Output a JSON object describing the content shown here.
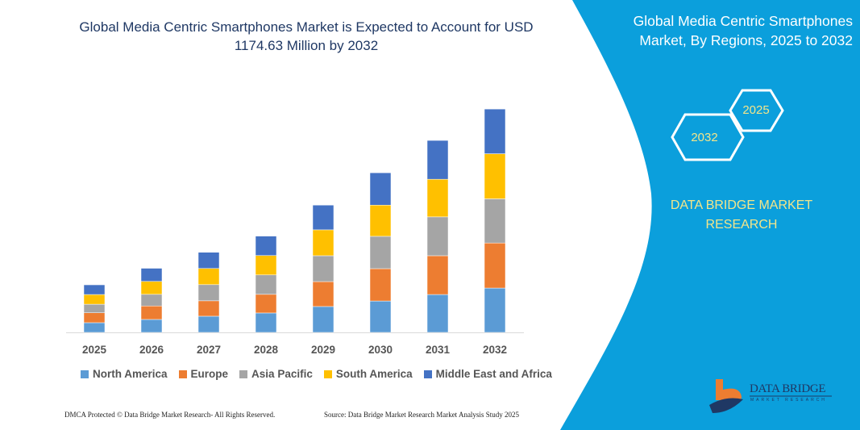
{
  "header": {
    "title": "Global Media Centric Smartphones Market is Expected to Account for USD 1174.63 Million by 2032"
  },
  "side_panel": {
    "title": "Global Media Centric Smartphones Market, By Regions, 2025 to 2032",
    "hex_labels": [
      "2025",
      "2032"
    ],
    "brand": "DATA BRIDGE MARKET RESEARCH",
    "logo_text": "DATA BRIDGE",
    "logo_sub": "MARKET RESEARCH",
    "panel_color": "#0b9fdc"
  },
  "footer": {
    "left": "DMCA Protected © Data Bridge Market Research- All Rights Reserved.",
    "right": "Source: Data Bridge Market Research Market Analysis Study 2025"
  },
  "chart_data": {
    "type": "bar",
    "stacked": true,
    "categories": [
      "2025",
      "2026",
      "2027",
      "2028",
      "2029",
      "2030",
      "2031",
      "2032"
    ],
    "series": [
      {
        "name": "North America",
        "color": "#5b9bd5",
        "values": [
          51,
          68,
          85,
          102,
          136,
          165,
          199,
          233
        ]
      },
      {
        "name": "Europe",
        "color": "#ed7d31",
        "values": [
          52,
          71,
          81,
          98,
          131,
          170,
          204,
          237
        ]
      },
      {
        "name": "Asia Pacific",
        "color": "#a5a5a5",
        "values": [
          45,
          61,
          85,
          102,
          136,
          170,
          204,
          232
        ]
      },
      {
        "name": "South America",
        "color": "#ffc000",
        "values": [
          51,
          68,
          85,
          102,
          136,
          164,
          198,
          237
        ]
      },
      {
        "name": "Middle East and Africa",
        "color": "#4472c4",
        "values": [
          51,
          69,
          85,
          102,
          130,
          170,
          204,
          235
        ]
      }
    ],
    "ylim": [
      0,
      1174.63
    ],
    "grid": false,
    "legend": "bottom",
    "xlabel": "",
    "ylabel": ""
  }
}
